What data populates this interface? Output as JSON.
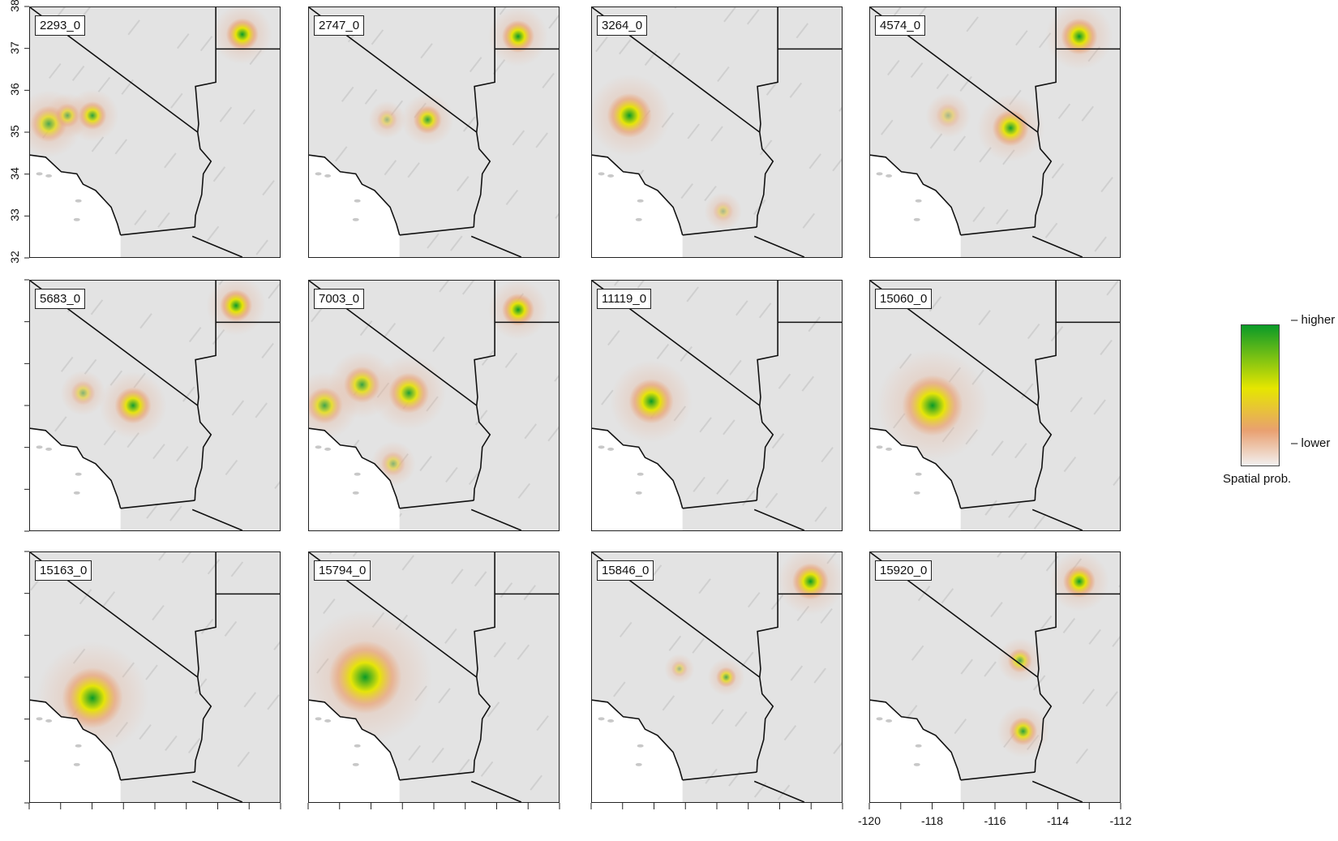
{
  "panels": [
    {
      "label": "2293_0",
      "hotspots": [
        {
          "lon": -119.4,
          "lat": 35.2,
          "r": 0.45,
          "level": 0.7
        },
        {
          "lon": -118.0,
          "lat": 35.4,
          "r": 0.35,
          "level": 0.85
        },
        {
          "lon": -113.2,
          "lat": 37.35,
          "r": 0.4,
          "level": 1.0
        },
        {
          "lon": -118.8,
          "lat": 35.4,
          "r": 0.3,
          "level": 0.6
        }
      ]
    },
    {
      "label": "2747_0",
      "hotspots": [
        {
          "lon": -116.2,
          "lat": 35.3,
          "r": 0.35,
          "level": 0.85
        },
        {
          "lon": -113.3,
          "lat": 37.3,
          "r": 0.4,
          "level": 1.0
        },
        {
          "lon": -117.5,
          "lat": 35.3,
          "r": 0.25,
          "level": 0.35
        }
      ]
    },
    {
      "label": "3264_0",
      "hotspots": [
        {
          "lon": -118.8,
          "lat": 35.4,
          "r": 0.55,
          "level": 1.0
        },
        {
          "lon": -115.8,
          "lat": 33.1,
          "r": 0.25,
          "level": 0.3
        }
      ]
    },
    {
      "label": "4574_0",
      "hotspots": [
        {
          "lon": -115.5,
          "lat": 35.1,
          "r": 0.45,
          "level": 0.95
        },
        {
          "lon": -113.3,
          "lat": 37.3,
          "r": 0.45,
          "level": 1.0
        },
        {
          "lon": -117.5,
          "lat": 35.4,
          "r": 0.3,
          "level": 0.3
        }
      ]
    },
    {
      "label": "5683_0",
      "hotspots": [
        {
          "lon": -116.7,
          "lat": 35.0,
          "r": 0.45,
          "level": 0.95
        },
        {
          "lon": -113.4,
          "lat": 37.4,
          "r": 0.4,
          "level": 1.0
        },
        {
          "lon": -118.3,
          "lat": 35.3,
          "r": 0.3,
          "level": 0.45
        }
      ]
    },
    {
      "label": "7003_0",
      "hotspots": [
        {
          "lon": -119.5,
          "lat": 35.0,
          "r": 0.45,
          "level": 0.75
        },
        {
          "lon": -118.3,
          "lat": 35.5,
          "r": 0.45,
          "level": 0.8
        },
        {
          "lon": -116.8,
          "lat": 35.3,
          "r": 0.5,
          "level": 0.9
        },
        {
          "lon": -113.3,
          "lat": 37.3,
          "r": 0.4,
          "level": 1.0
        },
        {
          "lon": -117.3,
          "lat": 33.6,
          "r": 0.3,
          "level": 0.45
        }
      ]
    },
    {
      "label": "11119_0",
      "hotspots": [
        {
          "lon": -118.1,
          "lat": 35.1,
          "r": 0.55,
          "level": 1.0
        }
      ]
    },
    {
      "label": "15060_0",
      "hotspots": [
        {
          "lon": -118.0,
          "lat": 35.0,
          "r": 0.75,
          "level": 1.0
        }
      ]
    },
    {
      "label": "15163_0",
      "hotspots": [
        {
          "lon": -118.0,
          "lat": 34.5,
          "r": 0.75,
          "level": 1.0
        }
      ]
    },
    {
      "label": "15794_0",
      "hotspots": [
        {
          "lon": -118.2,
          "lat": 35.0,
          "r": 0.9,
          "level": 1.0
        }
      ]
    },
    {
      "label": "15846_0",
      "hotspots": [
        {
          "lon": -115.7,
          "lat": 35.0,
          "r": 0.25,
          "level": 0.7
        },
        {
          "lon": -113.0,
          "lat": 37.3,
          "r": 0.45,
          "level": 1.0
        },
        {
          "lon": -117.2,
          "lat": 35.2,
          "r": 0.2,
          "level": 0.35
        }
      ]
    },
    {
      "label": "15920_0",
      "hotspots": [
        {
          "lon": -115.2,
          "lat": 35.4,
          "r": 0.3,
          "level": 0.7
        },
        {
          "lon": -115.1,
          "lat": 33.7,
          "r": 0.35,
          "level": 0.85
        },
        {
          "lon": -113.3,
          "lat": 37.3,
          "r": 0.4,
          "level": 1.0
        }
      ]
    }
  ],
  "axes": {
    "x_ticks": [
      -120,
      -118,
      -116,
      -114,
      -112
    ],
    "y_ticks": [
      32,
      33,
      34,
      35,
      36,
      37,
      38
    ],
    "x_range": [
      -120,
      -112
    ],
    "y_range": [
      32,
      38
    ]
  },
  "legend": {
    "high_label": "higher",
    "low_label": "lower",
    "title": "Spatial prob.",
    "colors": [
      "#0a9a28",
      "#e6e600",
      "#e9a070",
      "#f2f0f0"
    ]
  },
  "colors": {
    "land": "#e3e3e3",
    "ocean": "#ffffff",
    "border": "#111111",
    "halo": "#e8b59a"
  }
}
